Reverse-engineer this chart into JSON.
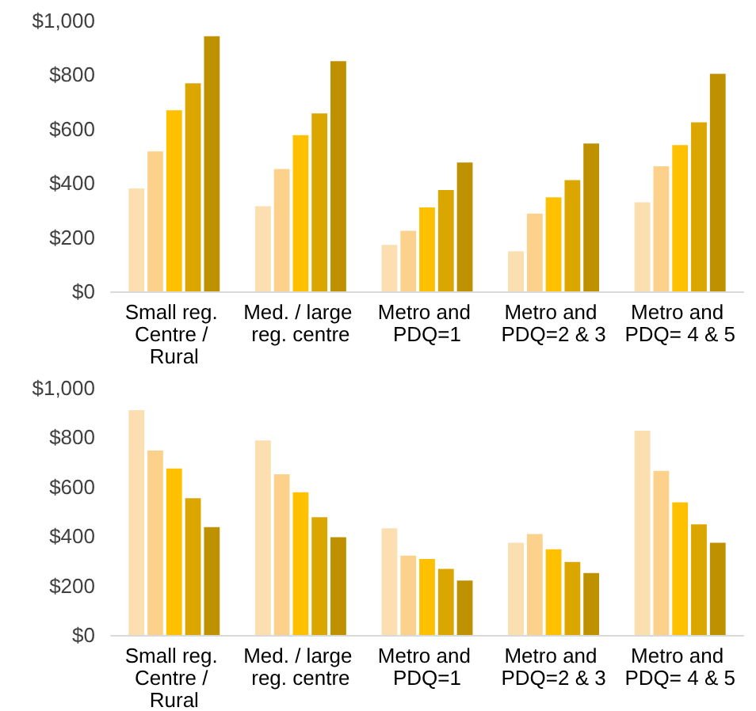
{
  "chart_data": [
    {
      "type": "bar",
      "categories": [
        "Small reg. Centre / Rural",
        "Med. / large reg. centre",
        "Metro and PDQ=1",
        "Metro and PDQ=2 & 3",
        "Metro and PDQ= 4 & 5"
      ],
      "series": [
        {
          "color": "#fbdfb0",
          "values": [
            380,
            314,
            172,
            148,
            329
          ]
        },
        {
          "color": "#fcd18b",
          "values": [
            517,
            452,
            224,
            287,
            462
          ]
        },
        {
          "color": "#ffc000",
          "values": [
            669,
            577,
            310,
            347,
            540
          ]
        },
        {
          "color": "#dca600",
          "values": [
            768,
            657,
            374,
            411,
            624
          ]
        },
        {
          "color": "#bf9000",
          "values": [
            942,
            850,
            476,
            546,
            803
          ]
        }
      ],
      "ylim": [
        0,
        1000
      ],
      "yticks": [
        {
          "value": 0,
          "label": "$0"
        },
        {
          "value": 200,
          "label": "$200"
        },
        {
          "value": 400,
          "label": "$400"
        },
        {
          "value": 600,
          "label": "$600"
        },
        {
          "value": 800,
          "label": "$800"
        },
        {
          "value": 1000,
          "label": "$1,000"
        }
      ],
      "grid": false
    },
    {
      "type": "bar",
      "categories": [
        "Small reg. Centre / Rural",
        "Med. / large reg. centre",
        "Metro and PDQ=1",
        "Metro and PDQ=2 & 3",
        "Metro and PDQ= 4 & 5"
      ],
      "series": [
        {
          "color": "#fbdfb0",
          "values": [
            910,
            788,
            432,
            373,
            827
          ]
        },
        {
          "color": "#fcd18b",
          "values": [
            747,
            651,
            321,
            409,
            664
          ]
        },
        {
          "color": "#ffc000",
          "values": [
            674,
            578,
            308,
            347,
            537
          ]
        },
        {
          "color": "#dca600",
          "values": [
            554,
            477,
            268,
            296,
            448
          ]
        },
        {
          "color": "#bf9000",
          "values": [
            437,
            396,
            220,
            251,
            373
          ]
        }
      ],
      "ylim": [
        0,
        1000
      ],
      "yticks": [
        {
          "value": 0,
          "label": "$0"
        },
        {
          "value": 200,
          "label": "$200"
        },
        {
          "value": 400,
          "label": "$400"
        },
        {
          "value": 600,
          "label": "$600"
        },
        {
          "value": 800,
          "label": "$800"
        },
        {
          "value": 1000,
          "label": "$1,000"
        }
      ],
      "grid": false
    }
  ]
}
